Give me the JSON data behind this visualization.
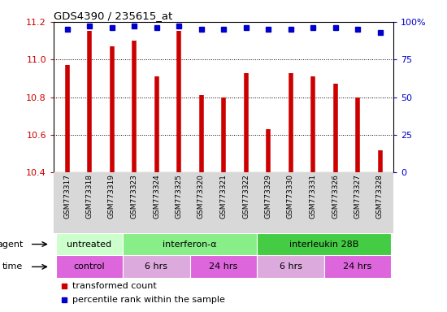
{
  "title": "GDS4390 / 235615_at",
  "samples": [
    "GSM773317",
    "GSM773318",
    "GSM773319",
    "GSM773323",
    "GSM773324",
    "GSM773325",
    "GSM773320",
    "GSM773321",
    "GSM773322",
    "GSM773329",
    "GSM773330",
    "GSM773331",
    "GSM773326",
    "GSM773327",
    "GSM773328"
  ],
  "transformed_count": [
    10.97,
    11.15,
    11.07,
    11.1,
    10.91,
    11.15,
    10.81,
    10.8,
    10.93,
    10.63,
    10.93,
    10.91,
    10.87,
    10.8,
    10.52
  ],
  "percentile_rank_pct": [
    95,
    97,
    96,
    97,
    96,
    97,
    95,
    95,
    96,
    95,
    95,
    96,
    96,
    95,
    93
  ],
  "ylim_left": [
    10.4,
    11.2
  ],
  "ylim_right": [
    0,
    100
  ],
  "yticks_left": [
    10.4,
    10.6,
    10.8,
    11.0,
    11.2
  ],
  "yticks_right": [
    0,
    25,
    50,
    75,
    100
  ],
  "bar_color": "#cc0000",
  "dot_color": "#0000cc",
  "chart_bg": "#ffffff",
  "xtick_bg": "#d8d8d8",
  "agent_groups": [
    {
      "label": "untreated",
      "start": 0,
      "end": 3,
      "color": "#ccffcc"
    },
    {
      "label": "interferon-α",
      "start": 3,
      "end": 9,
      "color": "#88ee88"
    },
    {
      "label": "interleukin 28B",
      "start": 9,
      "end": 15,
      "color": "#44cc44"
    }
  ],
  "time_groups": [
    {
      "label": "control",
      "start": 0,
      "end": 3,
      "color": "#dd66dd"
    },
    {
      "label": "6 hrs",
      "start": 3,
      "end": 6,
      "color": "#ddaadd"
    },
    {
      "label": "24 hrs",
      "start": 6,
      "end": 9,
      "color": "#dd66dd"
    },
    {
      "label": "6 hrs",
      "start": 9,
      "end": 12,
      "color": "#ddaadd"
    },
    {
      "label": "24 hrs",
      "start": 12,
      "end": 15,
      "color": "#dd66dd"
    }
  ],
  "grid_color": "#000000",
  "tick_color_left": "#cc0000",
  "tick_color_right": "#0000cc",
  "label_fontsize": 7.5,
  "tick_fontsize": 8
}
